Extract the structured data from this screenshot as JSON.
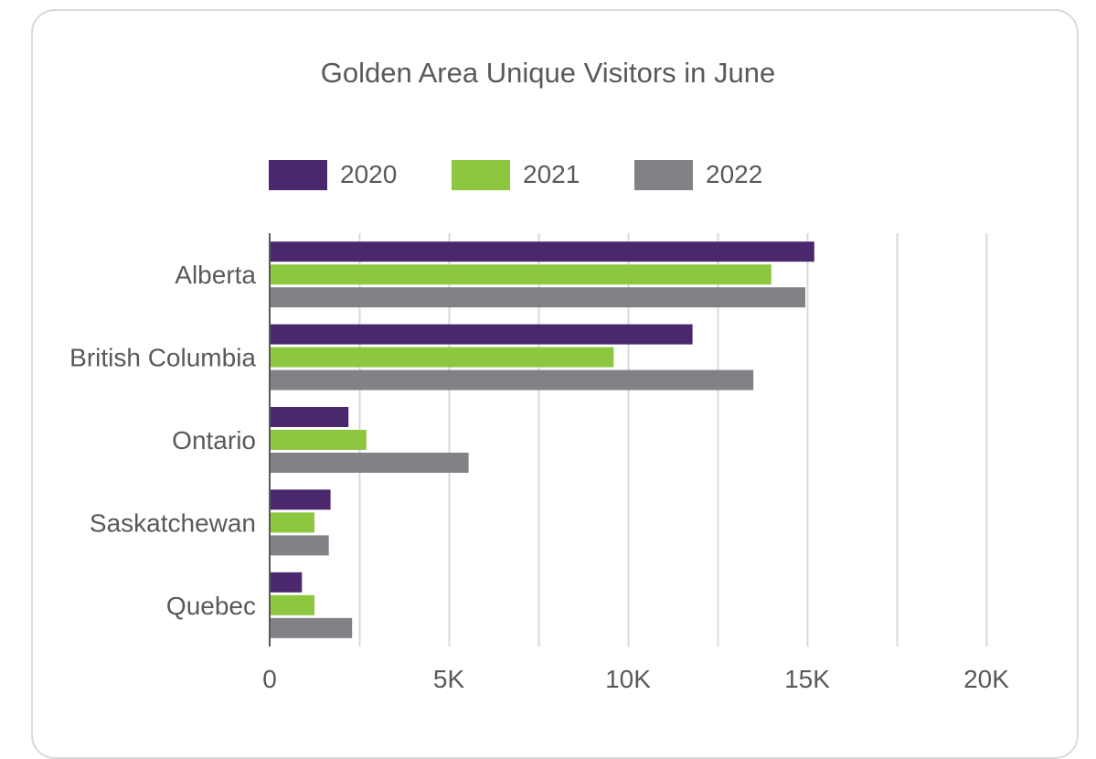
{
  "chart_data": {
    "type": "bar",
    "orientation": "horizontal",
    "title": "Golden Area Unique Visitors in June",
    "categories": [
      "Alberta",
      "British Columbia",
      "Ontario",
      "Saskatchewan",
      "Quebec"
    ],
    "series": [
      {
        "name": "2020",
        "color": "#4b286d",
        "values": [
          15200,
          11800,
          2200,
          1700,
          900
        ]
      },
      {
        "name": "2021",
        "color": "#8dc63f",
        "values": [
          14000,
          9600,
          2700,
          1250,
          1250
        ]
      },
      {
        "name": "2022",
        "color": "#808285",
        "values": [
          14950,
          13500,
          5550,
          1650,
          2300
        ]
      }
    ],
    "xticks": [
      "0",
      "5K",
      "10K",
      "15K",
      "20K"
    ],
    "xlim": [
      0,
      20000
    ],
    "gridline_step": 2500,
    "grid": true,
    "legend_position": "top",
    "xlabel": "",
    "ylabel": ""
  }
}
